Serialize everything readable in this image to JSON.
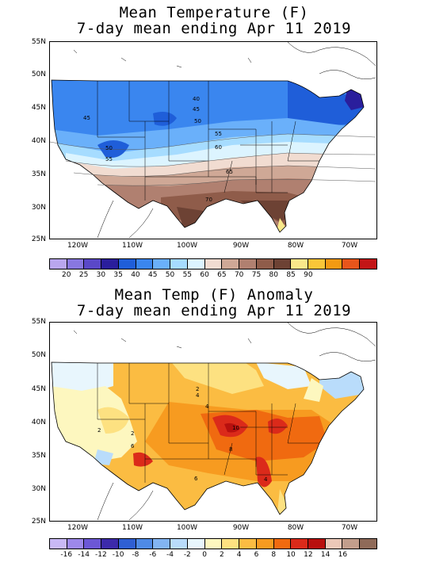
{
  "map1": {
    "title_line1": "Mean Temperature (F)",
    "title_line2": "7-day mean ending Apr 11 2019",
    "lat_labels": [
      "55N",
      "50N",
      "45N",
      "40N",
      "35N",
      "30N",
      "25N"
    ],
    "lon_labels": [
      "120W",
      "110W",
      "100W",
      "90W",
      "80W",
      "70W"
    ],
    "contour_labels": [
      "40",
      "45",
      "45",
      "50",
      "55",
      "50",
      "55",
      "60",
      "65",
      "70"
    ],
    "colorbar": {
      "colors": [
        "#b9a6ee",
        "#8877e0",
        "#5a48c8",
        "#2a1e9c",
        "#1f5ed9",
        "#3a86ef",
        "#6ab0fa",
        "#a6dcff",
        "#dcf4ff",
        "#f1dcd1",
        "#cfa896",
        "#b08070",
        "#8f5c4a",
        "#6d4234",
        "#f9e88a",
        "#f9c638",
        "#f39a12",
        "#e8551b",
        "#c31516"
      ],
      "labels": [
        "20",
        "25",
        "30",
        "35",
        "40",
        "45",
        "50",
        "55",
        "60",
        "65",
        "70",
        "75",
        "80",
        "85",
        "90"
      ]
    }
  },
  "map2": {
    "title_line1": "Mean Temp (F) Anomaly",
    "title_line2": "7-day mean ending Apr 11 2019",
    "lat_labels": [
      "55N",
      "50N",
      "45N",
      "40N",
      "35N",
      "30N",
      "25N"
    ],
    "lon_labels": [
      "120W",
      "110W",
      "100W",
      "90W",
      "80W",
      "70W"
    ],
    "contour_labels": [
      "2",
      "4",
      "4",
      "2",
      "2",
      "6",
      "8",
      "6",
      "10",
      "4"
    ],
    "colorbar": {
      "colors": [
        "#c9b9f5",
        "#9d88ea",
        "#6c57d6",
        "#3c2aaa",
        "#2f5fd3",
        "#4f8ae6",
        "#82b4f2",
        "#b9dcfb",
        "#e8f6fd",
        "#fdf7bf",
        "#fde181",
        "#fbbc42",
        "#f79b20",
        "#f06a10",
        "#db2a1a",
        "#b8100e",
        "#ecc8b8",
        "#c29e8c",
        "#8f6a58"
      ],
      "labels": [
        "-16",
        "-14",
        "-12",
        "-10",
        "-8",
        "-6",
        "-4",
        "-2",
        "0",
        "2",
        "4",
        "6",
        "8",
        "10",
        "12",
        "14",
        "16"
      ]
    }
  }
}
